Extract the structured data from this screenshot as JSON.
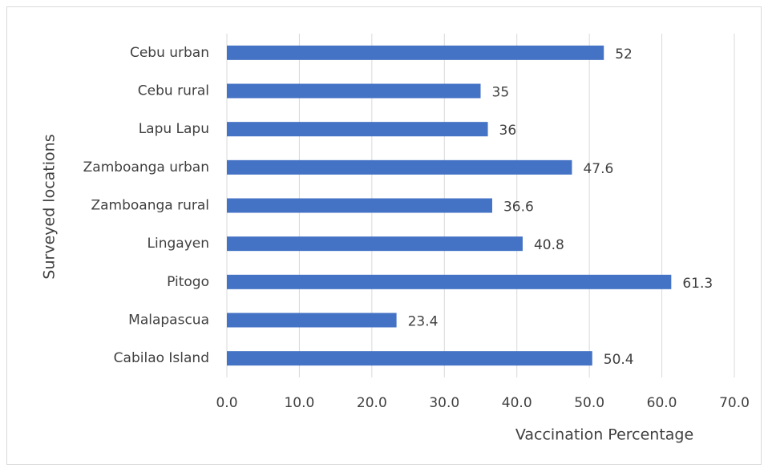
{
  "chart_data": {
    "type": "bar",
    "orientation": "horizontal",
    "categories": [
      "Cebu urban",
      "Cebu rural",
      "Lapu Lapu",
      "Zamboanga urban",
      "Zamboanga rural",
      "Lingayen",
      "Pitogo",
      "Malapascua",
      "Cabilao Island"
    ],
    "values": [
      52,
      35,
      36,
      47.6,
      36.6,
      40.8,
      61.3,
      23.4,
      50.4
    ],
    "color": "#4472c4",
    "xlabel": "Vaccination Percentage",
    "ylabel": "Surveyed locations",
    "xlim": [
      0,
      70
    ],
    "xticks": [
      {
        "value": 0,
        "label": "0.0"
      },
      {
        "value": 10,
        "label": "10.0"
      },
      {
        "value": 20,
        "label": "20.0"
      },
      {
        "value": 30,
        "label": "30.0"
      },
      {
        "value": 40,
        "label": "40.0"
      },
      {
        "value": 50,
        "label": "50.0"
      },
      {
        "value": 60,
        "label": "60.0"
      },
      {
        "value": 70,
        "label": "70.0"
      }
    ],
    "grid": true
  }
}
